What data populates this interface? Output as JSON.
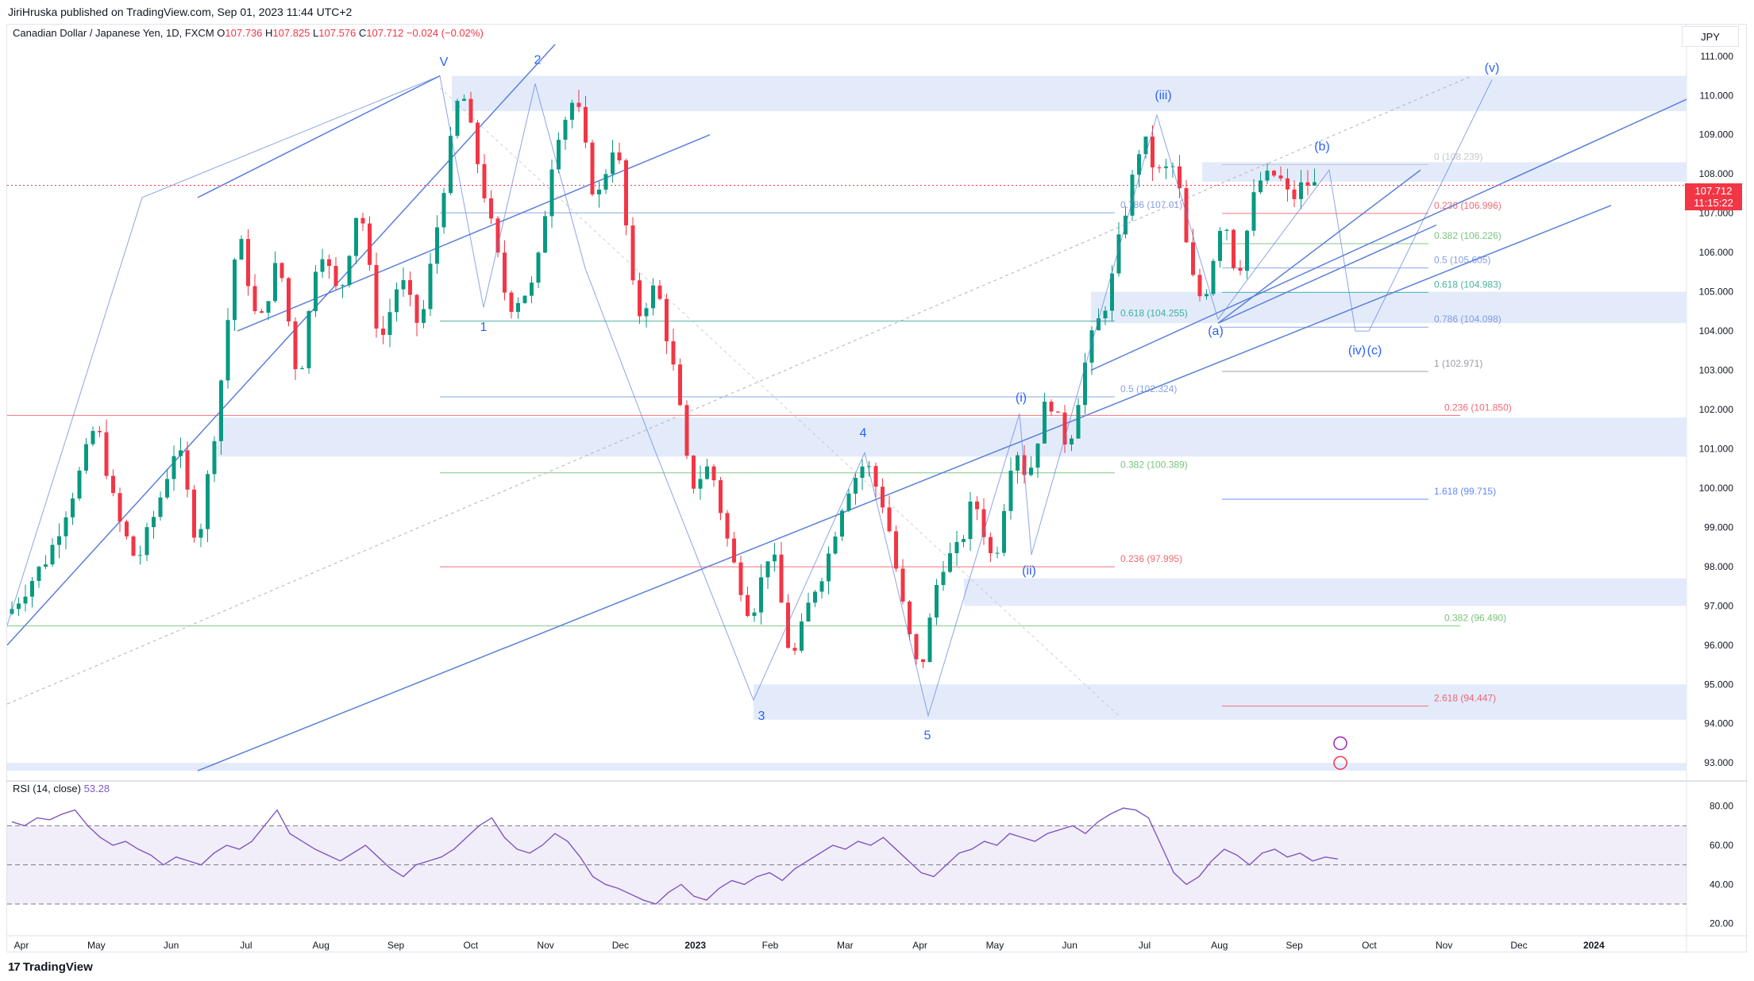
{
  "header": {
    "publisher_line": "JiriHruska published on TradingView.com, Sep 01, 2023 11:44 UTC+2"
  },
  "legend": {
    "symbol": "Canadian Dollar / Japanese Yen, 1D, FXCM",
    "open_label": "O",
    "open": "107.736",
    "high_label": "H",
    "high": "107.825",
    "low_label": "L",
    "low": "107.576",
    "close_label": "C",
    "close": "107.712",
    "change": "−0.024 (−0.02%)"
  },
  "currency": "JPY",
  "last_price": {
    "price": "107.712",
    "countdown": "11:15:22"
  },
  "rsi": {
    "label": "RSI (14, close)",
    "value": "53.28"
  },
  "footer": {
    "brand": "TradingView",
    "mark": "17"
  },
  "colors": {
    "up": "#089981",
    "down": "#f23645",
    "line": "#5b7fdc",
    "zone": "#e3ebfb",
    "rsi": "#7e57c2"
  },
  "chart_data": {
    "type": "candlestick",
    "y_axis": {
      "min": 93,
      "max": 111,
      "ticks": [
        "111.000",
        "110.000",
        "109.000",
        "108.000",
        "107.000",
        "106.000",
        "105.000",
        "104.000",
        "103.000",
        "102.000",
        "101.000",
        "100.000",
        "99.000",
        "98.000",
        "97.000",
        "96.000",
        "95.000",
        "94.000",
        "93.000"
      ]
    },
    "x_axis": {
      "ticks": [
        "Apr",
        "May",
        "Jun",
        "Jul",
        "Aug",
        "Sep",
        "Oct",
        "Nov",
        "Dec",
        "2023",
        "Feb",
        "Mar",
        "Apr",
        "May",
        "Jun",
        "Jul",
        "Aug",
        "Sep",
        "Oct",
        "Nov",
        "Dec",
        "2024"
      ]
    },
    "price_path": [
      [
        0,
        96.8
      ],
      [
        6,
        98.3
      ],
      [
        10,
        100.1
      ],
      [
        13,
        101.7
      ],
      [
        16,
        99.3
      ],
      [
        19,
        98.1
      ],
      [
        22,
        99.5
      ],
      [
        25,
        101.2
      ],
      [
        28,
        98.5
      ],
      [
        31,
        102.0
      ],
      [
        34,
        106.6
      ],
      [
        37,
        104.0
      ],
      [
        40,
        105.9
      ],
      [
        43,
        102.6
      ],
      [
        46,
        106.3
      ],
      [
        49,
        104.8
      ],
      [
        52,
        107.4
      ],
      [
        55,
        103.6
      ],
      [
        58,
        105.4
      ],
      [
        61,
        104.0
      ],
      [
        64,
        107.2
      ],
      [
        67,
        110.3
      ],
      [
        71,
        107.1
      ],
      [
        74,
        104.6
      ],
      [
        78,
        105.2
      ],
      [
        81,
        108.9
      ],
      [
        84,
        110.0
      ],
      [
        87,
        107.2
      ],
      [
        90,
        109.0
      ],
      [
        93,
        104.3
      ],
      [
        96,
        105.2
      ],
      [
        99,
        102.6
      ],
      [
        101,
        100.0
      ],
      [
        104,
        100.6
      ],
      [
        107,
        98.3
      ],
      [
        110,
        96.7
      ],
      [
        113,
        98.6
      ],
      [
        116,
        95.5
      ],
      [
        119,
        97.3
      ],
      [
        121,
        98.0
      ],
      [
        124,
        99.9
      ],
      [
        127,
        100.7
      ],
      [
        130,
        99.4
      ],
      [
        133,
        96.5
      ],
      [
        135,
        95.2
      ],
      [
        138,
        98.0
      ],
      [
        141,
        98.5
      ],
      [
        143,
        99.8
      ],
      [
        146,
        98.0
      ],
      [
        149,
        101.2
      ],
      [
        151,
        100.2
      ],
      [
        154,
        102.4
      ],
      [
        157,
        101.0
      ],
      [
        160,
        103.6
      ],
      [
        163,
        104.9
      ],
      [
        165,
        106.7
      ],
      [
        168,
        109.0
      ],
      [
        170,
        108.0
      ],
      [
        173,
        108.2
      ],
      [
        175,
        105.5
      ],
      [
        177,
        104.7
      ],
      [
        180,
        107.1
      ],
      [
        182,
        105.3
      ],
      [
        185,
        107.8
      ],
      [
        188,
        108.0
      ],
      [
        190,
        107.3
      ],
      [
        192,
        107.8
      ],
      [
        193,
        107.7
      ]
    ],
    "price_scale": {
      "x0": 0,
      "x_per_step": 6.28,
      "y_top": 111.4,
      "y_per_px": 0.0345
    },
    "series": [
      {
        "name": "wave labels",
        "labels": [
          {
            "text": "V",
            "x": 67,
            "y": 110.75
          },
          {
            "text": "1",
            "x": 74,
            "y": 104.0
          },
          {
            "text": "2",
            "x": 84,
            "y": 110.8
          },
          {
            "text": "3",
            "x": 135,
            "y": 94.3
          },
          {
            "text": "4",
            "x": 151,
            "y": 101.3
          },
          {
            "text": "5",
            "x": 165,
            "y": 93.7
          },
          {
            "text": "(i)",
            "x": 179,
            "y": 102.2
          },
          {
            "text": "(ii)",
            "x": 181,
            "y": 97.8
          },
          {
            "text": "(iii)",
            "x": 204,
            "y": 109.9
          },
          {
            "text": "(a)",
            "x": 214,
            "y": 103.9
          },
          {
            "text": "(b)",
            "x": 232,
            "y": 108.6
          },
          {
            "text": "(iv)",
            "x": 239,
            "y": 103.4
          },
          {
            "text": "(c)",
            "x": 242,
            "y": 103.4
          },
          {
            "text": "(v)",
            "x": 262,
            "y": 110.6
          }
        ]
      }
    ],
    "fib_levels": [
      {
        "label": "0 (108.239)",
        "value": 108.239
      },
      {
        "label": "0.236 (106.996)",
        "value": 106.996
      },
      {
        "label": "0.382 (106.226)",
        "value": 106.226
      },
      {
        "label": "0.5 (105.605)",
        "value": 105.605
      },
      {
        "label": "0.618 (104.983)",
        "value": 104.983
      },
      {
        "label": "0.786 (104.098)",
        "value": 104.098
      },
      {
        "label": "1 (102.971)",
        "value": 102.971
      },
      {
        "label": "1.618 (99.715)",
        "value": 99.715
      },
      {
        "label": "2.618 (94.447)",
        "value": 94.447
      },
      {
        "label": "0.786 (107.01)",
        "value": 107.01
      },
      {
        "label": "0.618 (104.255)",
        "value": 104.255
      },
      {
        "label": "0.5 (102.324)",
        "value": 102.324
      },
      {
        "label": "0.382 (100.389)",
        "value": 100.389
      },
      {
        "label": "0.236 (97.995)",
        "value": 97.995
      },
      {
        "label": "0.236 (101.850)",
        "value": 101.85
      },
      {
        "label": "0.382 (96.490)",
        "value": 96.49
      }
    ],
    "rsi_axis": {
      "ticks": [
        "80.00",
        "60.00",
        "40.00",
        "20.00"
      ],
      "bands": [
        70,
        50,
        30
      ]
    },
    "rsi_values": [
      72,
      70,
      74,
      73,
      76,
      78,
      70,
      64,
      60,
      62,
      58,
      55,
      50,
      54,
      52,
      50,
      56,
      60,
      58,
      62,
      70,
      78,
      66,
      62,
      58,
      55,
      52,
      56,
      60,
      54,
      48,
      44,
      50,
      52,
      54,
      58,
      64,
      70,
      74,
      64,
      58,
      56,
      60,
      66,
      62,
      54,
      44,
      40,
      38,
      35,
      32,
      30,
      36,
      40,
      34,
      32,
      38,
      42,
      40,
      44,
      46,
      42,
      48,
      52,
      56,
      60,
      58,
      62,
      60,
      64,
      58,
      52,
      46,
      44,
      50,
      56,
      58,
      62,
      60,
      66,
      64,
      62,
      66,
      68,
      70,
      66,
      72,
      76,
      79,
      78,
      74,
      60,
      46,
      40,
      44,
      52,
      58,
      55,
      50,
      56,
      58,
      54,
      56,
      52,
      54,
      53
    ]
  }
}
